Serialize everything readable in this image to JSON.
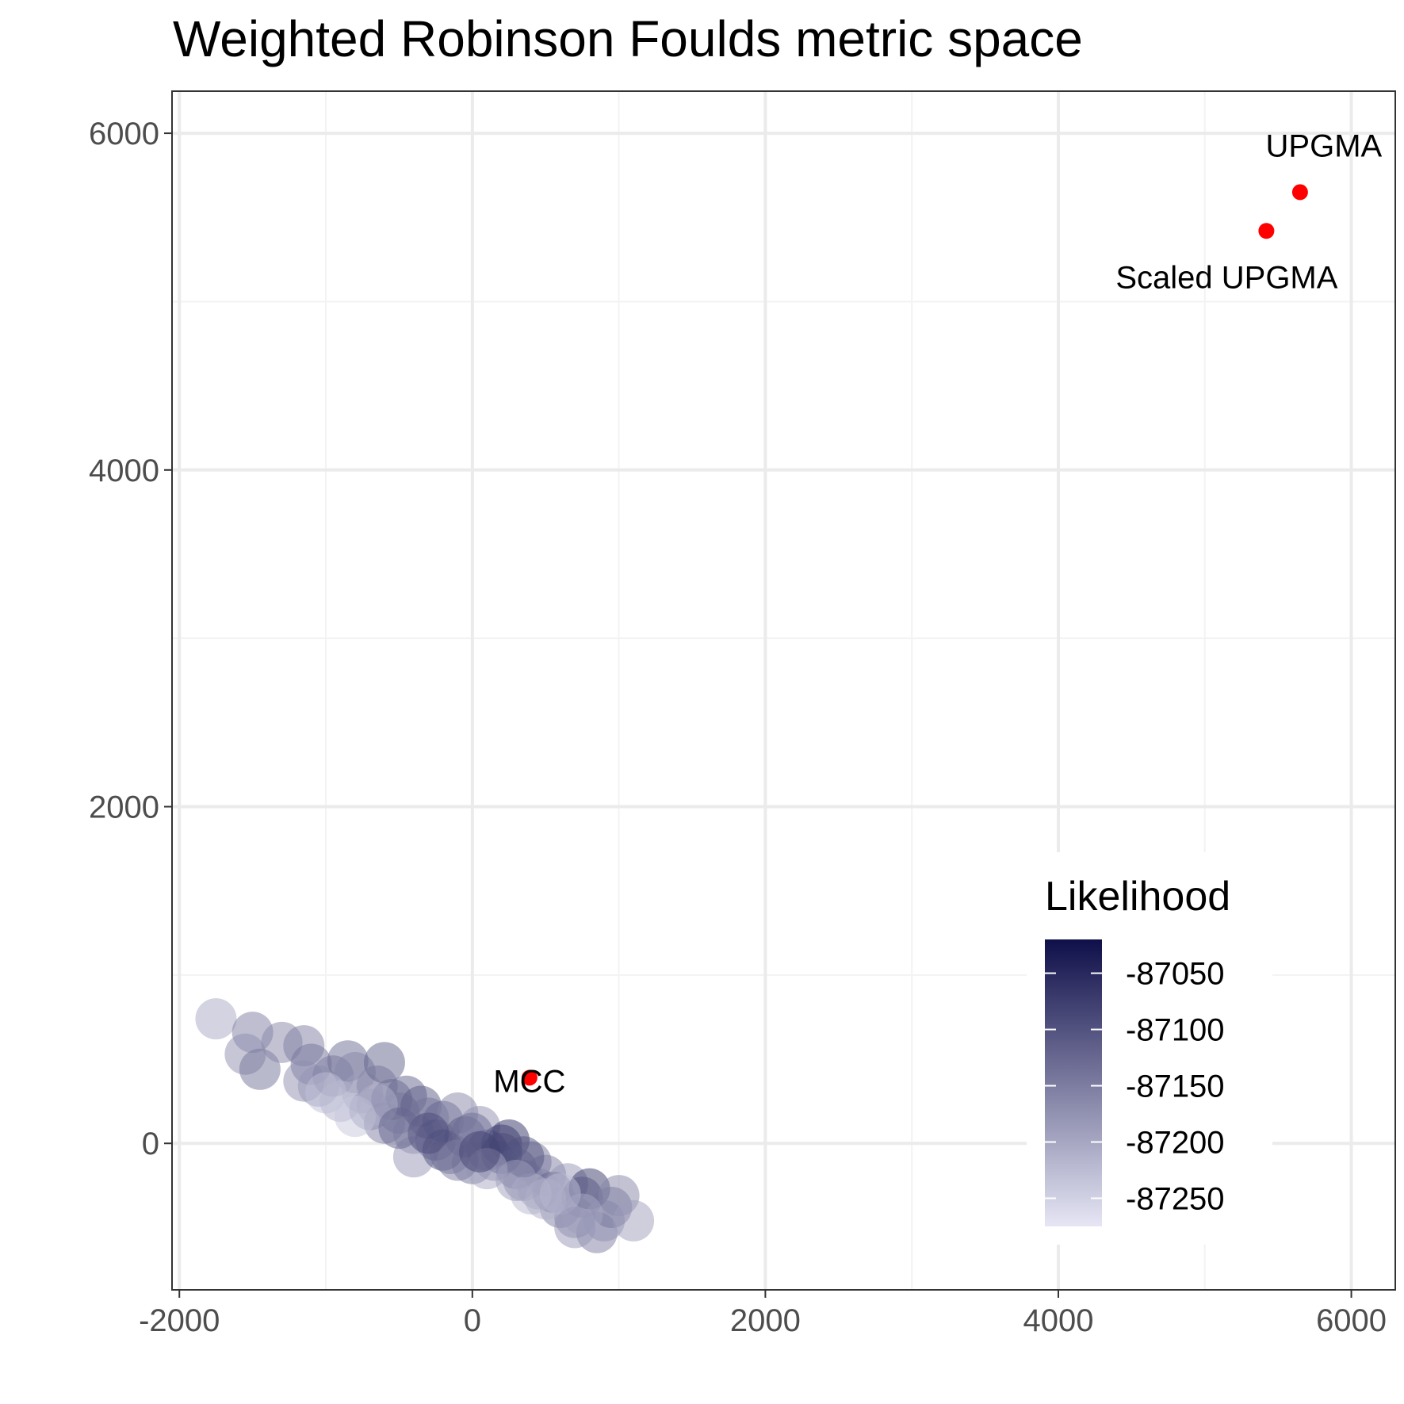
{
  "chart_data": {
    "type": "scatter",
    "title": "Weighted Robinson Foulds metric space",
    "xlabel": "",
    "ylabel": "",
    "xlim": [
      -2050,
      6300
    ],
    "ylim": [
      -870,
      6250
    ],
    "x_ticks": [
      -2000,
      0,
      2000,
      4000,
      6000
    ],
    "y_ticks": [
      0,
      2000,
      4000,
      6000
    ],
    "x_tick_labels": [
      "-2000",
      "0",
      "2000",
      "4000",
      "6000"
    ],
    "y_tick_labels": [
      "0",
      "2000",
      "4000",
      "6000"
    ],
    "x_minor_ticks": [
      -1000,
      1000,
      3000,
      5000
    ],
    "y_minor_ticks": [
      1000,
      3000,
      5000
    ],
    "grid": true,
    "series": [
      {
        "points": [
          {
            "x": -1750,
            "y": 740,
            "likelihood": -87200
          },
          {
            "x": -1500,
            "y": 660,
            "likelihood": -87150
          },
          {
            "x": -1550,
            "y": 530,
            "likelihood": -87170
          },
          {
            "x": -1450,
            "y": 440,
            "likelihood": -87140
          },
          {
            "x": -1300,
            "y": 600,
            "likelihood": -87160
          },
          {
            "x": -1150,
            "y": 580,
            "likelihood": -87150
          },
          {
            "x": -1100,
            "y": 470,
            "likelihood": -87140
          },
          {
            "x": -1150,
            "y": 370,
            "likelihood": -87170
          },
          {
            "x": -1050,
            "y": 340,
            "likelihood": -87180
          },
          {
            "x": -950,
            "y": 400,
            "likelihood": -87150
          },
          {
            "x": -850,
            "y": 490,
            "likelihood": -87130
          },
          {
            "x": -800,
            "y": 420,
            "likelihood": -87160
          },
          {
            "x": -750,
            "y": 300,
            "likelihood": -87190
          },
          {
            "x": -650,
            "y": 340,
            "likelihood": -87160
          },
          {
            "x": -600,
            "y": 480,
            "likelihood": -87120
          },
          {
            "x": -900,
            "y": 250,
            "likelihood": -87210
          },
          {
            "x": -700,
            "y": 200,
            "likelihood": -87180
          },
          {
            "x": -600,
            "y": 120,
            "likelihood": -87150
          },
          {
            "x": -550,
            "y": 260,
            "likelihood": -87130
          },
          {
            "x": -500,
            "y": 180,
            "likelihood": -87160
          },
          {
            "x": -450,
            "y": 280,
            "likelihood": -87120
          },
          {
            "x": -400,
            "y": 60,
            "likelihood": -87170
          },
          {
            "x": -350,
            "y": 220,
            "likelihood": -87110
          },
          {
            "x": -300,
            "y": 150,
            "likelihood": -87140
          },
          {
            "x": -250,
            "y": 20,
            "likelihood": -87100
          },
          {
            "x": -200,
            "y": 130,
            "likelihood": -87120
          },
          {
            "x": -150,
            "y": -60,
            "likelihood": -87140
          },
          {
            "x": -100,
            "y": 180,
            "likelihood": -87160
          },
          {
            "x": -50,
            "y": 40,
            "likelihood": -87110
          },
          {
            "x": 0,
            "y": -120,
            "likelihood": -87140
          },
          {
            "x": 50,
            "y": 100,
            "likelihood": -87170
          },
          {
            "x": 100,
            "y": -40,
            "likelihood": -87120
          },
          {
            "x": 150,
            "y": -100,
            "likelihood": -87150
          },
          {
            "x": 200,
            "y": -10,
            "likelihood": -87080
          },
          {
            "x": 250,
            "y": 20,
            "likelihood": -87060
          },
          {
            "x": 300,
            "y": -150,
            "likelihood": -87130
          },
          {
            "x": 350,
            "y": -220,
            "likelihood": -87160
          },
          {
            "x": 400,
            "y": -110,
            "likelihood": -87140
          },
          {
            "x": 450,
            "y": -270,
            "likelihood": -87170
          },
          {
            "x": 500,
            "y": -190,
            "likelihood": -87150
          },
          {
            "x": 550,
            "y": -290,
            "likelihood": -87120
          },
          {
            "x": 600,
            "y": -380,
            "likelihood": -87150
          },
          {
            "x": 650,
            "y": -240,
            "likelihood": -87180
          },
          {
            "x": 700,
            "y": -440,
            "likelihood": -87160
          },
          {
            "x": 750,
            "y": -320,
            "likelihood": -87140
          },
          {
            "x": 800,
            "y": -270,
            "likelihood": -87070
          },
          {
            "x": 850,
            "y": -530,
            "likelihood": -87150
          },
          {
            "x": 900,
            "y": -460,
            "likelihood": -87170
          },
          {
            "x": 950,
            "y": -380,
            "likelihood": -87140
          },
          {
            "x": 1000,
            "y": -310,
            "likelihood": -87160
          },
          {
            "x": 1100,
            "y": -460,
            "likelihood": -87190
          },
          {
            "x": -1000,
            "y": 300,
            "likelihood": -87230
          },
          {
            "x": -800,
            "y": 160,
            "likelihood": -87240
          },
          {
            "x": -400,
            "y": -80,
            "likelihood": -87180
          },
          {
            "x": -200,
            "y": -40,
            "likelihood": -87100
          },
          {
            "x": 0,
            "y": 60,
            "likelihood": -87130
          },
          {
            "x": 200,
            "y": -60,
            "likelihood": -87090
          },
          {
            "x": 400,
            "y": -300,
            "likelihood": -87220
          },
          {
            "x": 600,
            "y": -300,
            "likelihood": -87230
          },
          {
            "x": 350,
            "y": -80,
            "likelihood": -87100
          },
          {
            "x": -300,
            "y": 60,
            "likelihood": -87090
          },
          {
            "x": 100,
            "y": -150,
            "likelihood": -87200
          },
          {
            "x": -650,
            "y": 230,
            "likelihood": -87210
          },
          {
            "x": 750,
            "y": -420,
            "likelihood": -87200
          },
          {
            "x": 300,
            "y": -220,
            "likelihood": -87190
          },
          {
            "x": -100,
            "y": -100,
            "likelihood": -87150
          },
          {
            "x": 500,
            "y": -330,
            "likelihood": -87210
          },
          {
            "x": 700,
            "y": -500,
            "likelihood": -87180
          },
          {
            "x": 50,
            "y": -50,
            "likelihood": -87080
          },
          {
            "x": -500,
            "y": 90,
            "likelihood": -87120
          }
        ]
      },
      {
        "points": [
          {
            "x": 390,
            "y": 390,
            "label": "MCC"
          },
          {
            "x": 5650,
            "y": 5650,
            "label": "UPGMA"
          },
          {
            "x": 5420,
            "y": 5420,
            "label": "Scaled UPGMA"
          }
        ],
        "color": "#ff0000"
      }
    ],
    "legend": {
      "title": "Likelihood",
      "placement": "bottom-right",
      "range": [
        -87275,
        -87020
      ],
      "ticks": [
        -87050,
        -87100,
        -87150,
        -87200,
        -87250
      ],
      "tick_labels": [
        "-87050",
        "-87100",
        "-87150",
        "-87200",
        "-87250"
      ],
      "color_high": "#0f0f4a",
      "color_low": "#e6e6f5"
    },
    "colors": {
      "panel_border": "#333333",
      "grid_major": "#ebebeb",
      "grid_minor": "#f3f3f3",
      "tick_label": "#4d4d4d",
      "reference_points": "#ff0000",
      "bubble_alpha": 0.5
    }
  }
}
